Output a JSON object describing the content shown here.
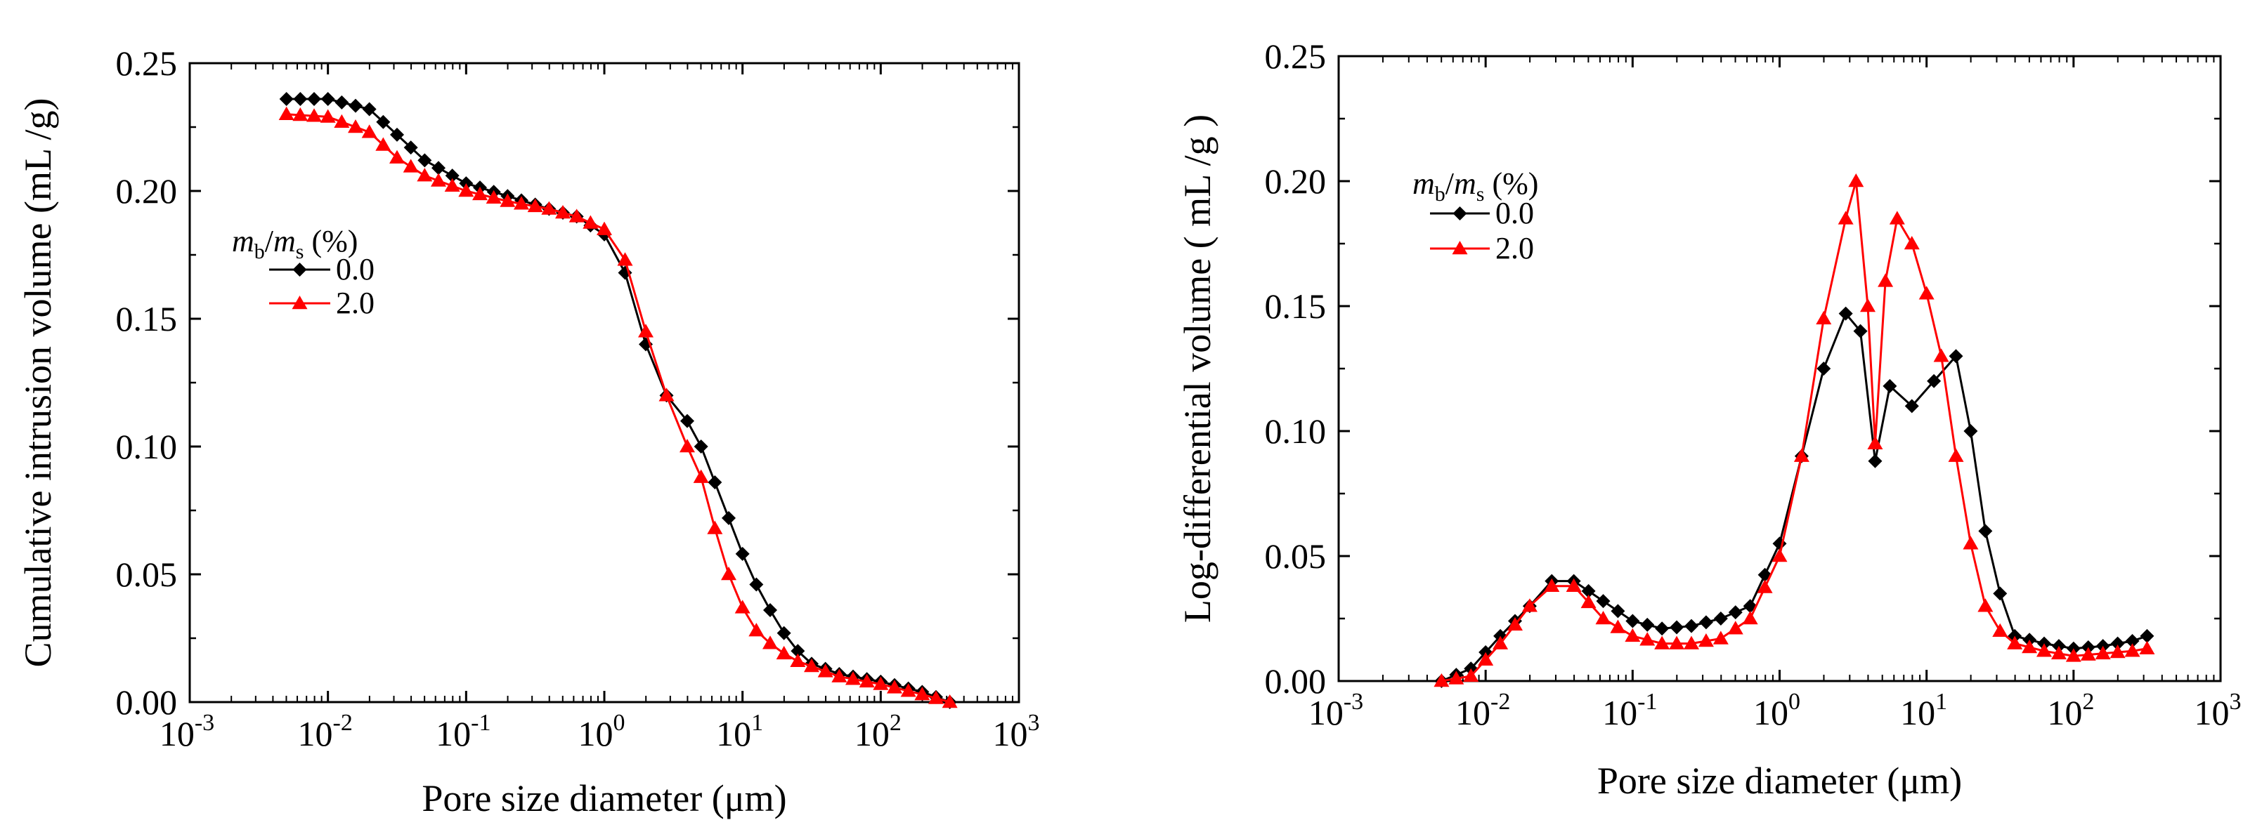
{
  "chart_data": [
    {
      "type": "line",
      "xscale": "log",
      "xlabel": "Pore size diameter (μm)",
      "ylabel": "Cumulative intrusion volume (mL /g)",
      "xlim_exp": [
        -3,
        3
      ],
      "ylim": [
        0,
        0.25
      ],
      "x_ticks": [
        {
          "base": "10",
          "exp": "-3"
        },
        {
          "base": "10",
          "exp": "-2"
        },
        {
          "base": "10",
          "exp": "-1"
        },
        {
          "base": "10",
          "exp": "0"
        },
        {
          "base": "10",
          "exp": "1"
        },
        {
          "base": "10",
          "exp": "2"
        },
        {
          "base": "10",
          "exp": "3"
        }
      ],
      "y_ticks": [
        "0.00",
        "0.05",
        "0.10",
        "0.15",
        "0.20",
        "0.25"
      ],
      "y_tick_values": [
        0,
        0.05,
        0.1,
        0.15,
        0.2,
        0.25
      ],
      "legend": {
        "title_num": "m",
        "title_num_sub": "b",
        "title_sep": "/",
        "title_den": "m",
        "title_den_sub": "s",
        "title_unit": " (%)",
        "position": "upper-left"
      },
      "series": [
        {
          "name": "0.0",
          "color": "#000000",
          "marker": "diamond",
          "points": [
            [
              -2.3,
              0.236
            ],
            [
              -2.0,
              0.236
            ],
            [
              -1.7,
              0.232
            ],
            [
              -1.5,
              0.222
            ],
            [
              -1.3,
              0.212
            ],
            [
              -1.0,
              0.203
            ],
            [
              -0.7,
              0.198
            ],
            [
              -0.4,
              0.193
            ],
            [
              -0.2,
              0.19
            ],
            [
              0.0,
              0.183
            ],
            [
              0.15,
              0.168
            ],
            [
              0.3,
              0.14
            ],
            [
              0.45,
              0.12
            ],
            [
              0.6,
              0.11
            ],
            [
              0.7,
              0.1
            ],
            [
              0.8,
              0.086
            ],
            [
              0.9,
              0.072
            ],
            [
              1.0,
              0.058
            ],
            [
              1.1,
              0.046
            ],
            [
              1.2,
              0.036
            ],
            [
              1.3,
              0.027
            ],
            [
              1.4,
              0.02
            ],
            [
              1.5,
              0.015
            ],
            [
              1.7,
              0.011
            ],
            [
              2.0,
              0.008
            ],
            [
              2.3,
              0.004
            ],
            [
              2.5,
              0.0
            ]
          ]
        },
        {
          "name": "2.0",
          "color": "#ff0000",
          "marker": "triangle",
          "points": [
            [
              -2.3,
              0.23
            ],
            [
              -2.0,
              0.229
            ],
            [
              -1.7,
              0.223
            ],
            [
              -1.5,
              0.213
            ],
            [
              -1.3,
              0.206
            ],
            [
              -1.0,
              0.2
            ],
            [
              -0.7,
              0.196
            ],
            [
              -0.4,
              0.193
            ],
            [
              -0.2,
              0.19
            ],
            [
              0.0,
              0.185
            ],
            [
              0.15,
              0.173
            ],
            [
              0.3,
              0.145
            ],
            [
              0.45,
              0.12
            ],
            [
              0.6,
              0.1
            ],
            [
              0.7,
              0.088
            ],
            [
              0.8,
              0.068
            ],
            [
              0.9,
              0.05
            ],
            [
              1.0,
              0.037
            ],
            [
              1.1,
              0.028
            ],
            [
              1.2,
              0.023
            ],
            [
              1.3,
              0.019
            ],
            [
              1.4,
              0.016
            ],
            [
              1.5,
              0.014
            ],
            [
              1.7,
              0.01
            ],
            [
              2.0,
              0.007
            ],
            [
              2.3,
              0.003
            ],
            [
              2.5,
              0.0
            ]
          ]
        }
      ]
    },
    {
      "type": "line",
      "xscale": "log",
      "xlabel": "Pore size diameter (μm)",
      "ylabel": "Log-differential volume ( mL /g )",
      "xlim_exp": [
        -3,
        3
      ],
      "ylim": [
        0,
        0.25
      ],
      "x_ticks": [
        {
          "base": "10",
          "exp": "-3"
        },
        {
          "base": "10",
          "exp": "-2"
        },
        {
          "base": "10",
          "exp": "-1"
        },
        {
          "base": "10",
          "exp": "0"
        },
        {
          "base": "10",
          "exp": "1"
        },
        {
          "base": "10",
          "exp": "2"
        },
        {
          "base": "10",
          "exp": "3"
        }
      ],
      "y_ticks": [
        "0.00",
        "0.05",
        "0.10",
        "0.15",
        "0.20",
        "0.25"
      ],
      "y_tick_values": [
        0,
        0.05,
        0.1,
        0.15,
        0.2,
        0.25
      ],
      "legend": {
        "title_num": "m",
        "title_num_sub": "b",
        "title_sep": "/",
        "title_den": "m",
        "title_den_sub": "s",
        "title_unit": " (%)",
        "position": "upper-left"
      },
      "series": [
        {
          "name": "0.0",
          "color": "#000000",
          "marker": "diamond",
          "points": [
            [
              -2.3,
              0.0
            ],
            [
              -2.1,
              0.005
            ],
            [
              -1.9,
              0.018
            ],
            [
              -1.7,
              0.03
            ],
            [
              -1.55,
              0.04
            ],
            [
              -1.4,
              0.04
            ],
            [
              -1.2,
              0.032
            ],
            [
              -1.0,
              0.024
            ],
            [
              -0.8,
              0.021
            ],
            [
              -0.6,
              0.022
            ],
            [
              -0.4,
              0.025
            ],
            [
              -0.2,
              0.03
            ],
            [
              0.0,
              0.055
            ],
            [
              0.15,
              0.09
            ],
            [
              0.3,
              0.125
            ],
            [
              0.45,
              0.147
            ],
            [
              0.55,
              0.14
            ],
            [
              0.65,
              0.088
            ],
            [
              0.75,
              0.118
            ],
            [
              0.9,
              0.11
            ],
            [
              1.05,
              0.12
            ],
            [
              1.2,
              0.13
            ],
            [
              1.3,
              0.1
            ],
            [
              1.4,
              0.06
            ],
            [
              1.5,
              0.035
            ],
            [
              1.6,
              0.018
            ],
            [
              1.8,
              0.015
            ],
            [
              2.0,
              0.013
            ],
            [
              2.2,
              0.014
            ],
            [
              2.4,
              0.016
            ],
            [
              2.5,
              0.018
            ]
          ]
        },
        {
          "name": "2.0",
          "color": "#ff0000",
          "marker": "triangle",
          "points": [
            [
              -2.3,
              0.0
            ],
            [
              -2.1,
              0.002
            ],
            [
              -1.9,
              0.015
            ],
            [
              -1.7,
              0.03
            ],
            [
              -1.55,
              0.038
            ],
            [
              -1.4,
              0.038
            ],
            [
              -1.2,
              0.025
            ],
            [
              -1.0,
              0.018
            ],
            [
              -0.8,
              0.015
            ],
            [
              -0.6,
              0.015
            ],
            [
              -0.4,
              0.017
            ],
            [
              -0.2,
              0.025
            ],
            [
              0.0,
              0.05
            ],
            [
              0.15,
              0.09
            ],
            [
              0.3,
              0.145
            ],
            [
              0.45,
              0.185
            ],
            [
              0.52,
              0.2
            ],
            [
              0.6,
              0.15
            ],
            [
              0.65,
              0.095
            ],
            [
              0.72,
              0.16
            ],
            [
              0.8,
              0.185
            ],
            [
              0.9,
              0.175
            ],
            [
              1.0,
              0.155
            ],
            [
              1.1,
              0.13
            ],
            [
              1.2,
              0.09
            ],
            [
              1.3,
              0.055
            ],
            [
              1.4,
              0.03
            ],
            [
              1.5,
              0.02
            ],
            [
              1.6,
              0.015
            ],
            [
              1.8,
              0.012
            ],
            [
              2.0,
              0.01
            ],
            [
              2.2,
              0.011
            ],
            [
              2.4,
              0.012
            ],
            [
              2.5,
              0.013
            ]
          ]
        }
      ]
    }
  ]
}
